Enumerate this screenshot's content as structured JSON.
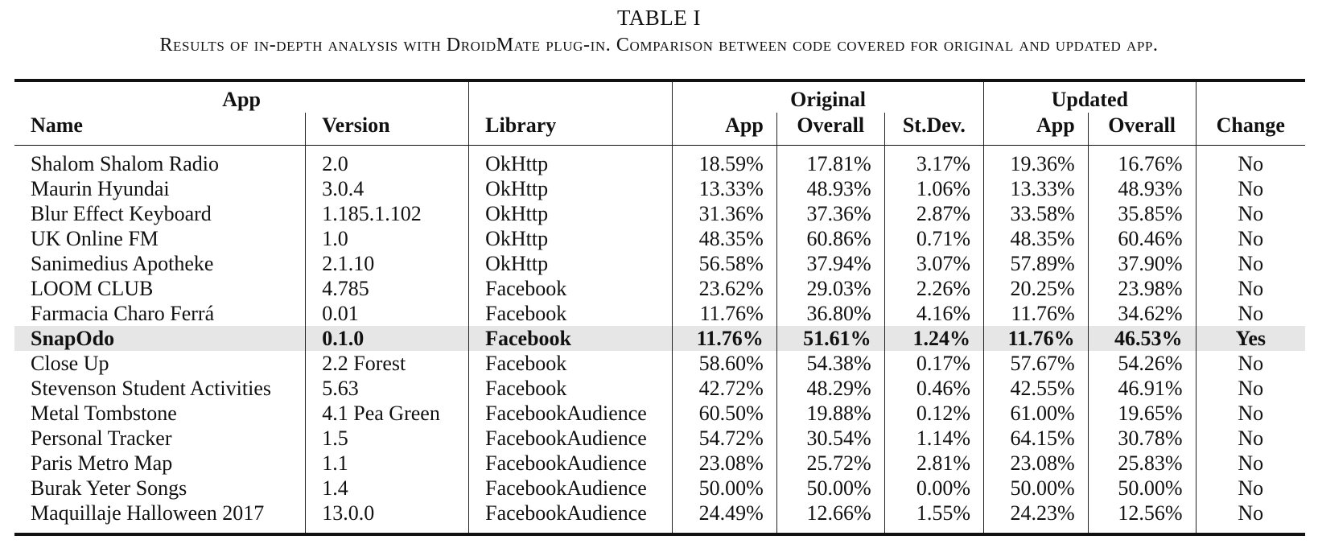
{
  "table_label": "TABLE I",
  "table_caption": "Results of in-depth analysis with DroidMate plug-in. Comparison between code covered for original and updated app.",
  "header": {
    "group_app": "App",
    "group_original": "Original",
    "group_updated": "Updated",
    "col_name": "Name",
    "col_version": "Version",
    "col_library": "Library",
    "col_orig_app": "App",
    "col_orig_overall": "Overall",
    "col_orig_stdev": "St.Dev.",
    "col_upd_app": "App",
    "col_upd_overall": "Overall",
    "col_change": "Change"
  },
  "rows": [
    {
      "name": "Shalom Shalom Radio",
      "version": "2.0",
      "library": "OkHttp",
      "orig_app": "18.59%",
      "orig_overall": "17.81%",
      "stdev": "3.17%",
      "upd_app": "19.36%",
      "upd_overall": "16.76%",
      "change": "No"
    },
    {
      "name": "Maurin Hyundai",
      "version": "3.0.4",
      "library": "OkHttp",
      "orig_app": "13.33%",
      "orig_overall": "48.93%",
      "stdev": "1.06%",
      "upd_app": "13.33%",
      "upd_overall": "48.93%",
      "change": "No"
    },
    {
      "name": "Blur Effect Keyboard",
      "version": "1.185.1.102",
      "library": "OkHttp",
      "orig_app": "31.36%",
      "orig_overall": "37.36%",
      "stdev": "2.87%",
      "upd_app": "33.58%",
      "upd_overall": "35.85%",
      "change": "No"
    },
    {
      "name": "UK Online FM",
      "version": "1.0",
      "library": "OkHttp",
      "orig_app": "48.35%",
      "orig_overall": "60.86%",
      "stdev": "0.71%",
      "upd_app": "48.35%",
      "upd_overall": "60.46%",
      "change": "No"
    },
    {
      "name": "Sanimedius Apotheke",
      "version": "2.1.10",
      "library": "OkHttp",
      "orig_app": "56.58%",
      "orig_overall": "37.94%",
      "stdev": "3.07%",
      "upd_app": "57.89%",
      "upd_overall": "37.90%",
      "change": "No"
    },
    {
      "name": "LOOM CLUB",
      "version": "4.785",
      "library": "Facebook",
      "orig_app": "23.62%",
      "orig_overall": "29.03%",
      "stdev": "2.26%",
      "upd_app": "20.25%",
      "upd_overall": "23.98%",
      "change": "No"
    },
    {
      "name": "Farmacia Charo Ferrá",
      "version": "0.01",
      "library": "Facebook",
      "orig_app": "11.76%",
      "orig_overall": "36.80%",
      "stdev": "4.16%",
      "upd_app": "11.76%",
      "upd_overall": "34.62%",
      "change": "No"
    },
    {
      "name": "SnapOdo",
      "version": "0.1.0",
      "library": "Facebook",
      "orig_app": "11.76%",
      "orig_overall": "51.61%",
      "stdev": "1.24%",
      "upd_app": "11.76%",
      "upd_overall": "46.53%",
      "change": "Yes"
    },
    {
      "name": "Close Up",
      "version": "2.2 Forest",
      "library": "Facebook",
      "orig_app": "58.60%",
      "orig_overall": "54.38%",
      "stdev": "0.17%",
      "upd_app": "57.67%",
      "upd_overall": "54.26%",
      "change": "No"
    },
    {
      "name": "Stevenson Student Activities",
      "version": "5.63",
      "library": "Facebook",
      "orig_app": "42.72%",
      "orig_overall": "48.29%",
      "stdev": "0.46%",
      "upd_app": "42.55%",
      "upd_overall": "46.91%",
      "change": "No"
    },
    {
      "name": "Metal Tombstone",
      "version": "4.1 Pea Green",
      "library": "FacebookAudience",
      "orig_app": "60.50%",
      "orig_overall": "19.88%",
      "stdev": "0.12%",
      "upd_app": "61.00%",
      "upd_overall": "19.65%",
      "change": "No"
    },
    {
      "name": "Personal Tracker",
      "version": "1.5",
      "library": "FacebookAudience",
      "orig_app": "54.72%",
      "orig_overall": "30.54%",
      "stdev": "1.14%",
      "upd_app": "64.15%",
      "upd_overall": "30.78%",
      "change": "No"
    },
    {
      "name": "Paris Metro Map",
      "version": "1.1",
      "library": "FacebookAudience",
      "orig_app": "23.08%",
      "orig_overall": "25.72%",
      "stdev": "2.81%",
      "upd_app": "23.08%",
      "upd_overall": "25.83%",
      "change": "No"
    },
    {
      "name": "Burak Yeter Songs",
      "version": "1.4",
      "library": "FacebookAudience",
      "orig_app": "50.00%",
      "orig_overall": "50.00%",
      "stdev": "0.00%",
      "upd_app": "50.00%",
      "upd_overall": "50.00%",
      "change": "No"
    },
    {
      "name": "Maquillaje Halloween 2017",
      "version": "13.0.0",
      "library": "FacebookAudience",
      "orig_app": "24.49%",
      "orig_overall": "12.66%",
      "stdev": "1.55%",
      "upd_app": "24.23%",
      "upd_overall": "12.56%",
      "change": "No"
    }
  ],
  "highlighted_row_index": 7
}
